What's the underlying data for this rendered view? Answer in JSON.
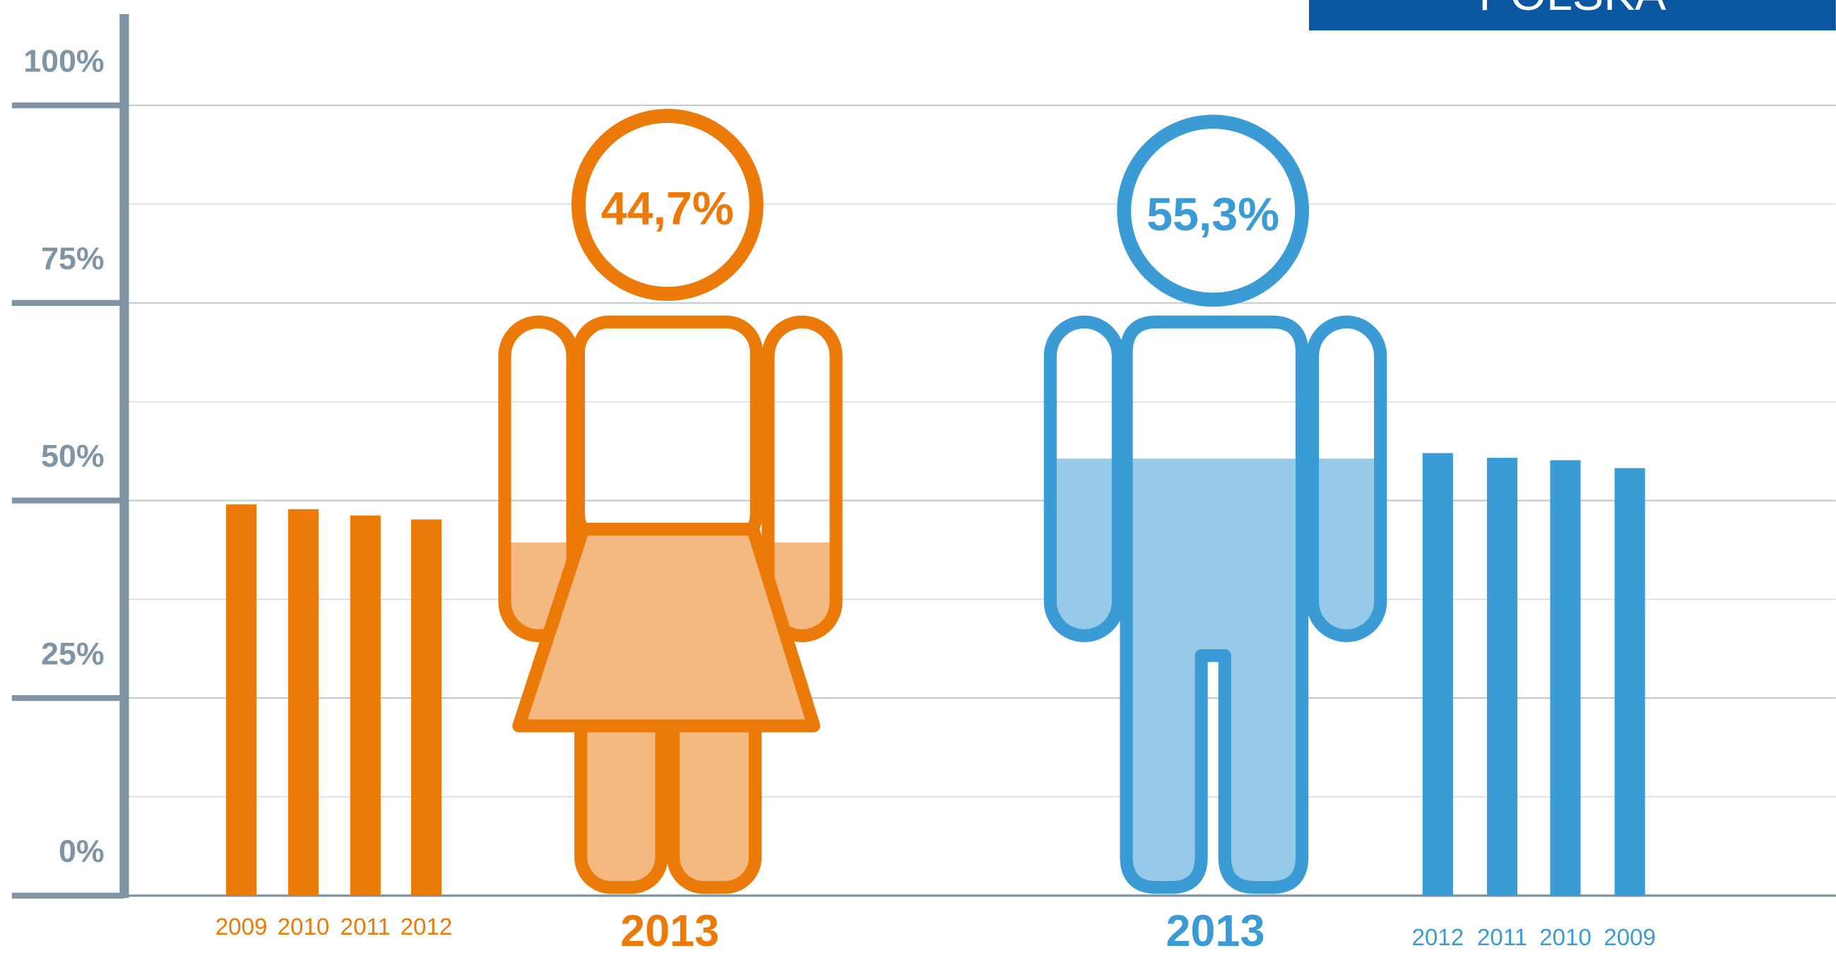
{
  "header": {
    "title": "POLSKA"
  },
  "chart_data": {
    "type": "bar",
    "ylim": [
      0,
      100
    ],
    "yticks": [
      {
        "value": 0,
        "label": "0%"
      },
      {
        "value": 25,
        "label": "25%"
      },
      {
        "value": 50,
        "label": "50%"
      },
      {
        "value": 75,
        "label": "75%"
      },
      {
        "value": 100,
        "label": "100%"
      }
    ],
    "grid": true,
    "groups": [
      {
        "color": "#ec7a08",
        "fill_color": "#f4b981",
        "categories": [
          "2009",
          "2010",
          "2011",
          "2012"
        ],
        "values": [
          49.5,
          48.9,
          48.1,
          47.6
        ],
        "highlight_category": "2013",
        "highlight_value": 44.7,
        "highlight_label": "44,7%"
      },
      {
        "color": "#3a9bd5",
        "fill_color": "#96cae8",
        "categories": [
          "2012",
          "2011",
          "2010",
          "2009"
        ],
        "values": [
          56.0,
          55.4,
          55.1,
          54.1
        ],
        "highlight_category": "2013",
        "highlight_value": 55.3,
        "highlight_label": "55,3%"
      }
    ]
  }
}
